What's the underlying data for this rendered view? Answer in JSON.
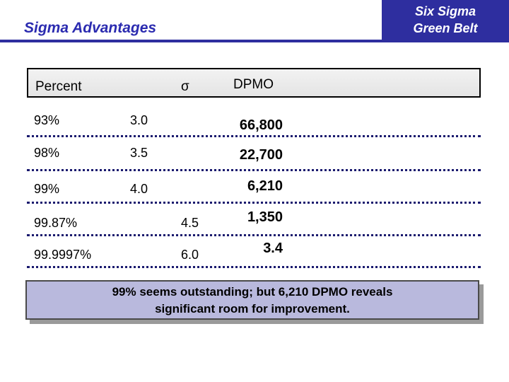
{
  "header": {
    "title": "Sigma Advantages",
    "badge_line1": "Six Sigma",
    "badge_line2": "Green Belt"
  },
  "table": {
    "columns": {
      "percent": "Percent",
      "sigma": "σ",
      "dpmo": "DPMO"
    },
    "rows": [
      {
        "percent": "93%",
        "sigma": "3.0",
        "dpmo": "66,800"
      },
      {
        "percent": "98%",
        "sigma": "3.5",
        "dpmo": "22,700"
      },
      {
        "percent": "99%",
        "sigma": "4.0",
        "dpmo": "6,210"
      },
      {
        "percent": "99.87%",
        "sigma": "4.5",
        "dpmo": "1,350"
      },
      {
        "percent": "99.9997%",
        "sigma": "6.0",
        "dpmo": "3.4"
      }
    ]
  },
  "callout": {
    "line1": "99% seems outstanding; but 6,210 DPMO reveals",
    "line2": "significant room for improvement."
  },
  "colors": {
    "accent": "#2e2e9f",
    "title": "#2b2bb0",
    "callout_bg": "#b9b9dd"
  }
}
